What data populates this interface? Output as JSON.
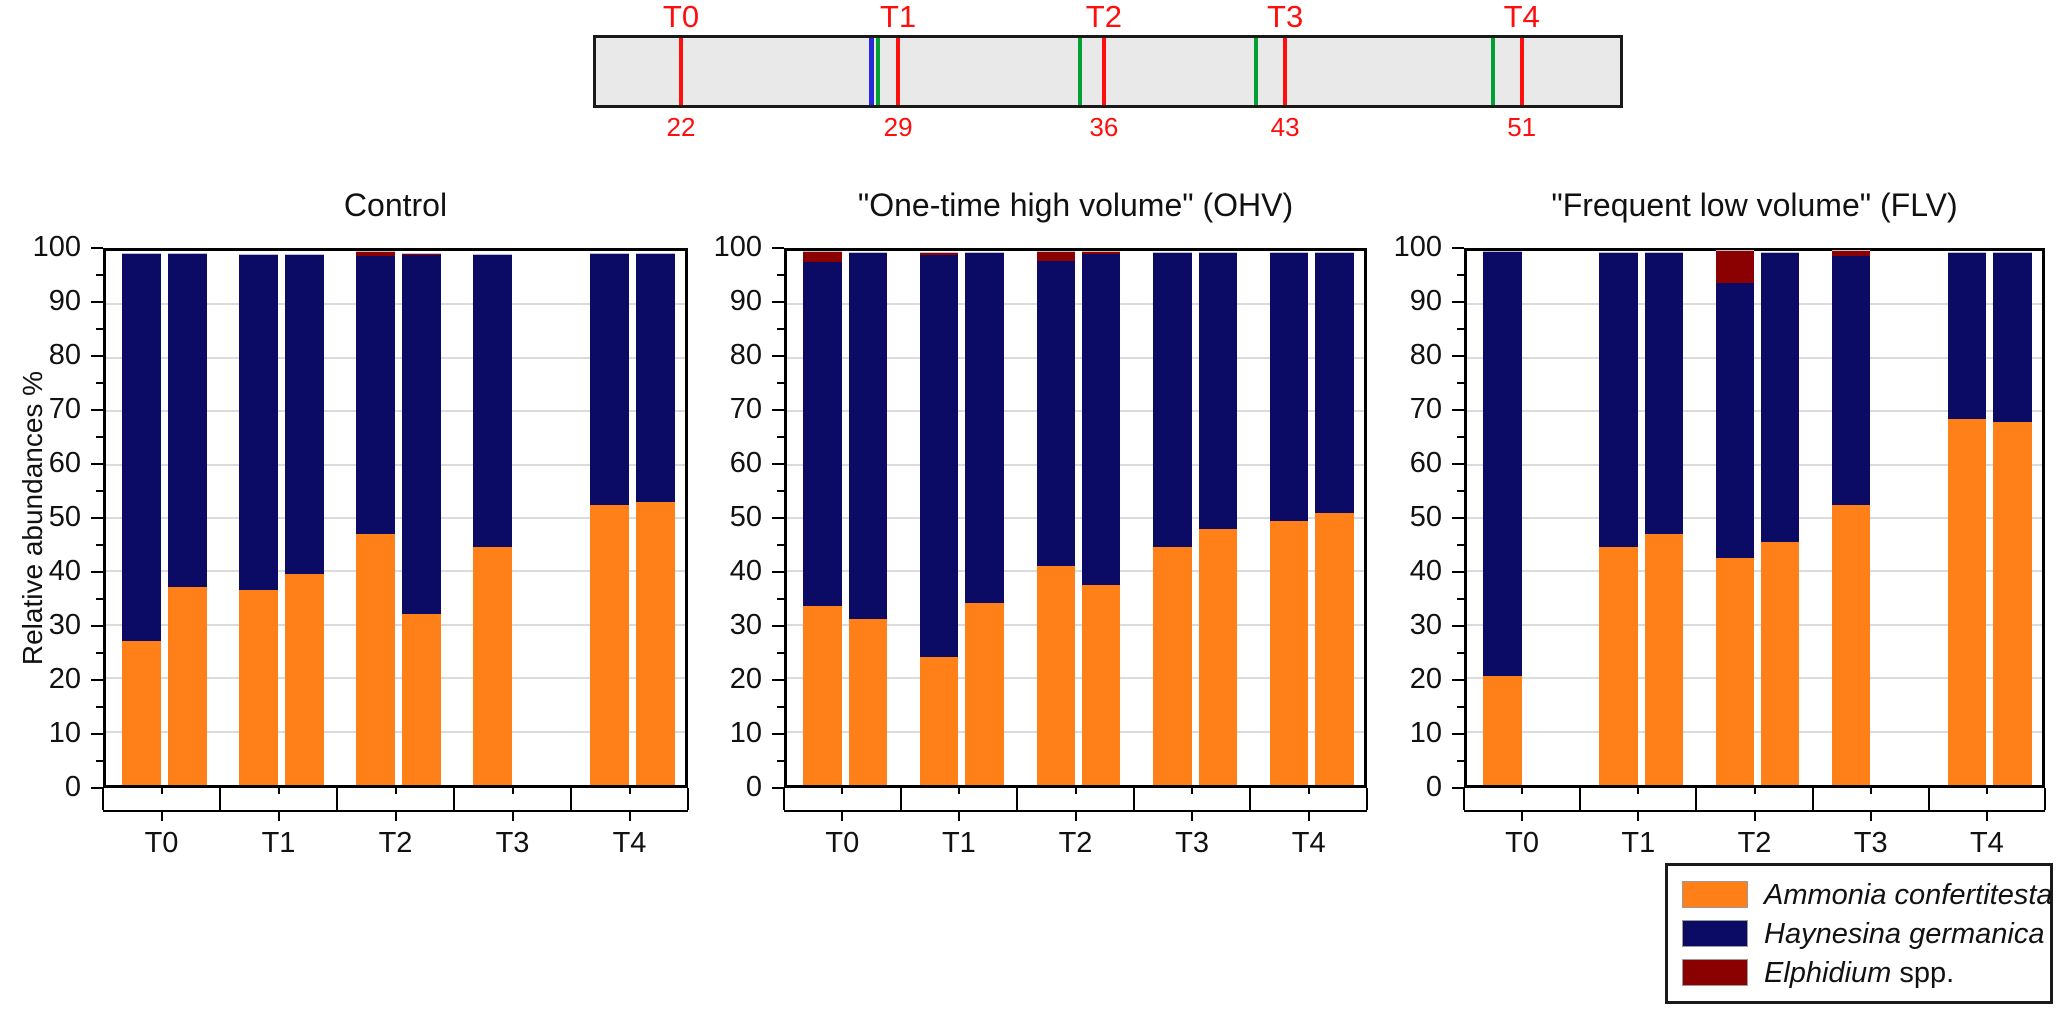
{
  "timeline": {
    "name": "experiment timeline",
    "sampling_color": "#ff0e0e",
    "addition_color": "#00a033",
    "initial_addition_color": "#2828dc",
    "bar_fill": "#e9e9e9",
    "events": [
      {
        "kind": "sampling",
        "label": "T0",
        "day": "22",
        "pos_pct": 8.3
      },
      {
        "kind": "initial-addition",
        "pos_pct": 26.9
      },
      {
        "kind": "addition",
        "pos_pct": 27.5
      },
      {
        "kind": "sampling",
        "label": "T1",
        "day": "29",
        "pos_pct": 29.5
      },
      {
        "kind": "addition",
        "pos_pct": 47.3
      },
      {
        "kind": "sampling",
        "label": "T2",
        "day": "36",
        "pos_pct": 49.6
      },
      {
        "kind": "addition",
        "pos_pct": 64.5
      },
      {
        "kind": "sampling",
        "label": "T3",
        "day": "43",
        "pos_pct": 67.3
      },
      {
        "kind": "addition",
        "pos_pct": 87.6
      },
      {
        "kind": "sampling",
        "label": "T4",
        "day": "51",
        "pos_pct": 90.4
      }
    ]
  },
  "chart_data": {
    "type": "bar",
    "stacked": true,
    "ylabel": "Relative abundances %",
    "ylim": [
      0,
      100
    ],
    "y_major_step": 10,
    "y_minor_step": 5,
    "grid": "horizontal, light gray, every 10",
    "legend_position": "bottom-right, outside plots",
    "categories": [
      "T0",
      "T1",
      "T2",
      "T3",
      "T4"
    ],
    "replicates_per_category": 2,
    "series_names": [
      "Ammonia confertitesta",
      "Haynesina germanica",
      "Elphidium spp."
    ],
    "series_colors": [
      "#ff7f19",
      "#0b0b66",
      "#8b0000"
    ],
    "panels": [
      {
        "title": "Control",
        "bars": [
          {
            "group": "T0",
            "rep": 1,
            "ammonia": 27.0,
            "haynesina": 72.5,
            "elphidium": 0
          },
          {
            "group": "T0",
            "rep": 2,
            "ammonia": 37.0,
            "haynesina": 62.5,
            "elphidium": 0
          },
          {
            "group": "T1",
            "rep": 1,
            "ammonia": 36.5,
            "haynesina": 62.8,
            "elphidium": 0
          },
          {
            "group": "T1",
            "rep": 2,
            "ammonia": 39.5,
            "haynesina": 59.8,
            "elphidium": 0
          },
          {
            "group": "T2",
            "rep": 1,
            "ammonia": 47.0,
            "haynesina": 52.0,
            "elphidium": 0.8
          },
          {
            "group": "T2",
            "rep": 2,
            "ammonia": 32.0,
            "haynesina": 67.2,
            "elphidium": 0.3
          },
          {
            "group": "T3",
            "rep": 1,
            "ammonia": 44.5,
            "haynesina": 54.8,
            "elphidium": 0
          },
          {
            "group": "T3",
            "rep": 2,
            "missing": true
          },
          {
            "group": "T4",
            "rep": 1,
            "ammonia": 52.5,
            "haynesina": 47.0,
            "elphidium": 0
          },
          {
            "group": "T4",
            "rep": 2,
            "ammonia": 53.0,
            "haynesina": 46.5,
            "elphidium": 0
          }
        ]
      },
      {
        "title": "\"One-time high volume\" (OHV)",
        "bars": [
          {
            "group": "T0",
            "rep": 1,
            "ammonia": 33.5,
            "haynesina": 64.5,
            "elphidium": 1.9
          },
          {
            "group": "T0",
            "rep": 2,
            "ammonia": 31.0,
            "haynesina": 68.7,
            "elphidium": 0
          },
          {
            "group": "T1",
            "rep": 1,
            "ammonia": 24.0,
            "haynesina": 75.2,
            "elphidium": 0.5
          },
          {
            "group": "T1",
            "rep": 2,
            "ammonia": 34.0,
            "haynesina": 65.7,
            "elphidium": 0
          },
          {
            "group": "T2",
            "rep": 1,
            "ammonia": 41.0,
            "haynesina": 57.2,
            "elphidium": 1.7
          },
          {
            "group": "T2",
            "rep": 2,
            "ammonia": 37.5,
            "haynesina": 61.9,
            "elphidium": 0.4
          },
          {
            "group": "T3",
            "rep": 1,
            "ammonia": 44.5,
            "haynesina": 55.2,
            "elphidium": 0
          },
          {
            "group": "T3",
            "rep": 2,
            "ammonia": 48.0,
            "haynesina": 51.7,
            "elphidium": 0
          },
          {
            "group": "T4",
            "rep": 1,
            "ammonia": 49.5,
            "haynesina": 50.2,
            "elphidium": 0
          },
          {
            "group": "T4",
            "rep": 2,
            "ammonia": 51.0,
            "haynesina": 48.7,
            "elphidium": 0
          }
        ]
      },
      {
        "title": "\"Frequent low volume\" (FLV)",
        "bars": [
          {
            "group": "T0",
            "rep": 1,
            "ammonia": 20.5,
            "haynesina": 79.4,
            "elphidium": 0
          },
          {
            "group": "T0",
            "rep": 2,
            "missing": true
          },
          {
            "group": "T1",
            "rep": 1,
            "ammonia": 44.5,
            "haynesina": 55.2,
            "elphidium": 0
          },
          {
            "group": "T1",
            "rep": 2,
            "ammonia": 47.0,
            "haynesina": 52.7,
            "elphidium": 0
          },
          {
            "group": "T2",
            "rep": 1,
            "ammonia": 42.5,
            "haynesina": 51.5,
            "elphidium": 6.0
          },
          {
            "group": "T2",
            "rep": 2,
            "ammonia": 45.5,
            "haynesina": 54.2,
            "elphidium": 0
          },
          {
            "group": "T3",
            "rep": 1,
            "ammonia": 52.5,
            "haynesina": 46.5,
            "elphidium": 1.0
          },
          {
            "group": "T3",
            "rep": 2,
            "missing": true
          },
          {
            "group": "T4",
            "rep": 1,
            "ammonia": 68.5,
            "haynesina": 31.2,
            "elphidium": 0
          },
          {
            "group": "T4",
            "rep": 2,
            "ammonia": 68.0,
            "haynesina": 31.7,
            "elphidium": 0
          }
        ]
      }
    ]
  },
  "legend": {
    "items": [
      {
        "label": "Ammonia confertitesta",
        "suffix": "",
        "color": "#ff7f19"
      },
      {
        "label": "Haynesina germanica",
        "suffix": "",
        "color": "#0b0b66"
      },
      {
        "label": "Elphidium",
        "suffix": " spp.",
        "color": "#8b0000"
      }
    ]
  }
}
